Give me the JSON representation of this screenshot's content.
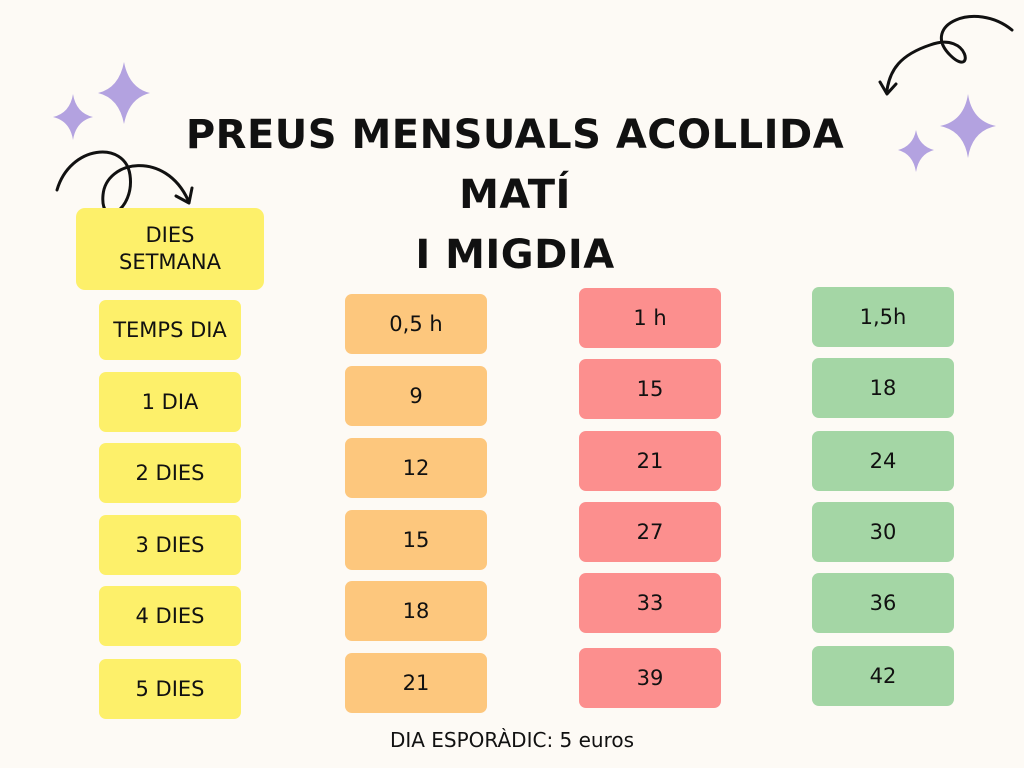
{
  "title": {
    "line1": "PREUS MENSUALS ACOLLIDA MATÍ",
    "line2": "I MIGDIA"
  },
  "table": {
    "days_header": "DIES SETMANA",
    "time_header": "TEMPS DIA",
    "rows": [
      "1 DIA",
      "2 DIES",
      "3 DIES",
      "4 DIES",
      "5 DIES"
    ],
    "columns": [
      {
        "label": "0,5 h",
        "prices": [
          "9",
          "12",
          "15",
          "18",
          "21"
        ]
      },
      {
        "label": "1 h",
        "prices": [
          "15",
          "21",
          "27",
          "33",
          "39"
        ]
      },
      {
        "label": "1,5h",
        "prices": [
          "18",
          "24",
          "30",
          "36",
          "42"
        ]
      }
    ]
  },
  "footer": "DIA ESPORÀDIC: 5 euros",
  "colors": {
    "background": "#fdfaf5",
    "yellow": "#fdf06a",
    "orange": "#fdc77d",
    "red": "#fc8f8e",
    "green": "#a4d6a5",
    "sparkle": "#b3a2e0"
  },
  "decorations": [
    "sparkle-icon",
    "curly-arrow-icon"
  ]
}
